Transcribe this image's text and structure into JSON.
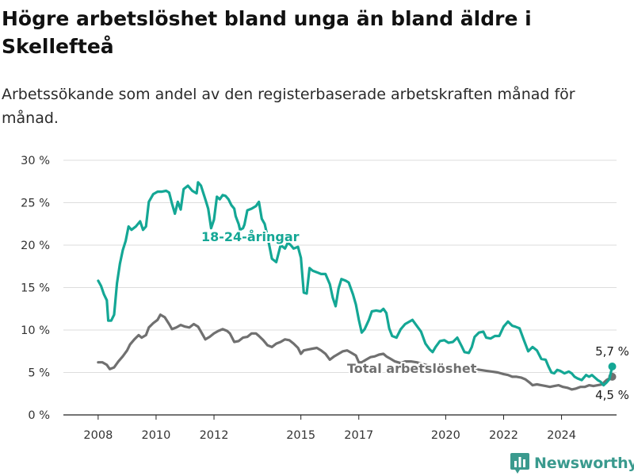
{
  "title": "Högre arbetslöshet bland unga än bland äldre i Skellefteå",
  "subtitle": "Arbetssökande som andel av den registerbaserade arbetskraften månad för månad.",
  "brand": {
    "name": "Newsworthy",
    "icon": "bar-chart-logo-icon"
  },
  "colors": {
    "young": "#14a795",
    "total": "#707070",
    "grid": "#dddddd",
    "brand": "#3a9a8e"
  },
  "chart_data": {
    "type": "line",
    "title": "Högre arbetslöshet bland unga än bland äldre i Skellefteå",
    "subtitle": "Arbetssökande som andel av den registerbaserade arbetskraften månad för månad.",
    "xlabel": "",
    "ylabel": "",
    "xlim": [
      2006.8,
      2025.9
    ],
    "ylim": [
      0,
      30
    ],
    "grid": "horizontal",
    "legend": "inline labels",
    "y_ticks": [
      {
        "value": 0,
        "label": "0 %"
      },
      {
        "value": 5,
        "label": "5 %"
      },
      {
        "value": 10,
        "label": "10 %"
      },
      {
        "value": 15,
        "label": "15 %"
      },
      {
        "value": 20,
        "label": "20 %"
      },
      {
        "value": 25,
        "label": "25 %"
      },
      {
        "value": 30,
        "label": "30 %"
      }
    ],
    "x_ticks": [
      {
        "value": 2008,
        "label": "2008"
      },
      {
        "value": 2010,
        "label": "2010"
      },
      {
        "value": 2012,
        "label": "2012"
      },
      {
        "value": 2015,
        "label": "2015"
      },
      {
        "value": 2017,
        "label": "2017"
      },
      {
        "value": 2020,
        "label": "2020"
      },
      {
        "value": 2022,
        "label": "2022"
      },
      {
        "value": 2024,
        "label": "2024"
      }
    ],
    "series": [
      {
        "name": "18-24-åringar",
        "color": "#14a795",
        "end_label": "5,7 %",
        "points": [
          [
            2008.0,
            15.8
          ],
          [
            2008.1,
            15.2
          ],
          [
            2008.2,
            14.2
          ],
          [
            2008.3,
            13.5
          ],
          [
            2008.35,
            11.1
          ],
          [
            2008.45,
            11.1
          ],
          [
            2008.55,
            11.8
          ],
          [
            2008.65,
            15.5
          ],
          [
            2008.75,
            17.8
          ],
          [
            2008.85,
            19.4
          ],
          [
            2008.95,
            20.5
          ],
          [
            2009.05,
            22.2
          ],
          [
            2009.15,
            21.8
          ],
          [
            2009.3,
            22.2
          ],
          [
            2009.45,
            22.8
          ],
          [
            2009.55,
            21.8
          ],
          [
            2009.65,
            22.2
          ],
          [
            2009.75,
            25.1
          ],
          [
            2009.9,
            26.0
          ],
          [
            2010.05,
            26.3
          ],
          [
            2010.2,
            26.3
          ],
          [
            2010.35,
            26.4
          ],
          [
            2010.45,
            26.2
          ],
          [
            2010.55,
            24.9
          ],
          [
            2010.65,
            23.7
          ],
          [
            2010.75,
            25.1
          ],
          [
            2010.85,
            24.2
          ],
          [
            2010.95,
            26.6
          ],
          [
            2011.1,
            27.0
          ],
          [
            2011.25,
            26.4
          ],
          [
            2011.4,
            26.1
          ],
          [
            2011.45,
            27.4
          ],
          [
            2011.55,
            27.0
          ],
          [
            2011.7,
            25.4
          ],
          [
            2011.8,
            24.3
          ],
          [
            2011.9,
            22.0
          ],
          [
            2012.0,
            23.0
          ],
          [
            2012.1,
            25.7
          ],
          [
            2012.2,
            25.4
          ],
          [
            2012.3,
            25.9
          ],
          [
            2012.4,
            25.8
          ],
          [
            2012.5,
            25.4
          ],
          [
            2012.6,
            24.7
          ],
          [
            2012.7,
            24.3
          ],
          [
            2012.75,
            23.4
          ],
          [
            2012.85,
            22.5
          ],
          [
            2012.9,
            21.8
          ],
          [
            2013.0,
            22.0
          ],
          [
            2013.05,
            22.4
          ],
          [
            2013.15,
            24.1
          ],
          [
            2013.3,
            24.3
          ],
          [
            2013.45,
            24.6
          ],
          [
            2013.55,
            25.1
          ],
          [
            2013.65,
            23.1
          ],
          [
            2013.75,
            22.5
          ],
          [
            2013.85,
            21.0
          ],
          [
            2014.0,
            18.4
          ],
          [
            2014.15,
            18.0
          ],
          [
            2014.3,
            20.0
          ],
          [
            2014.45,
            19.6
          ],
          [
            2014.55,
            20.3
          ],
          [
            2014.65,
            20.0
          ],
          [
            2014.75,
            19.6
          ],
          [
            2014.9,
            19.8
          ],
          [
            2015.0,
            18.5
          ],
          [
            2015.1,
            14.4
          ],
          [
            2015.2,
            14.3
          ],
          [
            2015.3,
            17.3
          ],
          [
            2015.4,
            17.0
          ],
          [
            2015.55,
            16.8
          ],
          [
            2015.7,
            16.6
          ],
          [
            2015.85,
            16.6
          ],
          [
            2016.0,
            15.4
          ],
          [
            2016.1,
            13.8
          ],
          [
            2016.2,
            12.8
          ],
          [
            2016.3,
            14.9
          ],
          [
            2016.4,
            16.0
          ],
          [
            2016.55,
            15.8
          ],
          [
            2016.65,
            15.6
          ],
          [
            2016.8,
            14.2
          ],
          [
            2016.9,
            13.0
          ],
          [
            2017.0,
            11.2
          ],
          [
            2017.1,
            9.7
          ],
          [
            2017.2,
            10.1
          ],
          [
            2017.35,
            11.2
          ],
          [
            2017.45,
            12.2
          ],
          [
            2017.6,
            12.3
          ],
          [
            2017.75,
            12.2
          ],
          [
            2017.85,
            12.5
          ],
          [
            2017.95,
            12.0
          ],
          [
            2018.05,
            10.2
          ],
          [
            2018.15,
            9.3
          ],
          [
            2018.3,
            9.1
          ],
          [
            2018.45,
            10.1
          ],
          [
            2018.6,
            10.7
          ],
          [
            2018.7,
            10.9
          ],
          [
            2018.85,
            11.2
          ],
          [
            2019.0,
            10.5
          ],
          [
            2019.15,
            9.8
          ],
          [
            2019.3,
            8.4
          ],
          [
            2019.45,
            7.7
          ],
          [
            2019.55,
            7.4
          ],
          [
            2019.65,
            8.0
          ],
          [
            2019.8,
            8.7
          ],
          [
            2019.95,
            8.8
          ],
          [
            2020.1,
            8.5
          ],
          [
            2020.25,
            8.6
          ],
          [
            2020.4,
            9.1
          ],
          [
            2020.55,
            8.1
          ],
          [
            2020.65,
            7.4
          ],
          [
            2020.8,
            7.3
          ],
          [
            2020.9,
            8.0
          ],
          [
            2021.0,
            9.2
          ],
          [
            2021.15,
            9.7
          ],
          [
            2021.3,
            9.8
          ],
          [
            2021.4,
            9.1
          ],
          [
            2021.55,
            9.0
          ],
          [
            2021.7,
            9.3
          ],
          [
            2021.85,
            9.3
          ],
          [
            2022.0,
            10.4
          ],
          [
            2022.15,
            11.0
          ],
          [
            2022.3,
            10.5
          ],
          [
            2022.4,
            10.4
          ],
          [
            2022.55,
            10.2
          ],
          [
            2022.7,
            8.8
          ],
          [
            2022.85,
            7.5
          ],
          [
            2023.0,
            8.0
          ],
          [
            2023.15,
            7.6
          ],
          [
            2023.3,
            6.6
          ],
          [
            2023.45,
            6.5
          ],
          [
            2023.55,
            5.7
          ],
          [
            2023.65,
            5.0
          ],
          [
            2023.75,
            4.9
          ],
          [
            2023.85,
            5.3
          ],
          [
            2023.95,
            5.2
          ],
          [
            2024.1,
            4.9
          ],
          [
            2024.25,
            5.1
          ],
          [
            2024.35,
            4.9
          ],
          [
            2024.45,
            4.5
          ],
          [
            2024.55,
            4.3
          ],
          [
            2024.7,
            4.1
          ],
          [
            2024.85,
            4.7
          ],
          [
            2024.95,
            4.5
          ],
          [
            2025.05,
            4.7
          ],
          [
            2025.15,
            4.4
          ],
          [
            2025.25,
            4.1
          ],
          [
            2025.35,
            3.9
          ],
          [
            2025.45,
            3.5
          ],
          [
            2025.55,
            3.8
          ],
          [
            2025.65,
            4.2
          ],
          [
            2025.75,
            5.7
          ]
        ]
      },
      {
        "name": "Total arbetslöshet",
        "color": "#707070",
        "end_label": "4,5 %",
        "points": [
          [
            2008.0,
            6.2
          ],
          [
            2008.15,
            6.2
          ],
          [
            2008.3,
            5.9
          ],
          [
            2008.4,
            5.4
          ],
          [
            2008.55,
            5.6
          ],
          [
            2008.7,
            6.3
          ],
          [
            2008.85,
            6.9
          ],
          [
            2009.0,
            7.6
          ],
          [
            2009.1,
            8.3
          ],
          [
            2009.25,
            8.9
          ],
          [
            2009.4,
            9.4
          ],
          [
            2009.5,
            9.1
          ],
          [
            2009.65,
            9.4
          ],
          [
            2009.75,
            10.3
          ],
          [
            2009.9,
            10.8
          ],
          [
            2010.05,
            11.2
          ],
          [
            2010.15,
            11.8
          ],
          [
            2010.3,
            11.5
          ],
          [
            2010.45,
            10.7
          ],
          [
            2010.55,
            10.1
          ],
          [
            2010.7,
            10.3
          ],
          [
            2010.85,
            10.6
          ],
          [
            2011.0,
            10.4
          ],
          [
            2011.15,
            10.3
          ],
          [
            2011.3,
            10.7
          ],
          [
            2011.45,
            10.4
          ],
          [
            2011.55,
            9.8
          ],
          [
            2011.7,
            8.9
          ],
          [
            2011.85,
            9.2
          ],
          [
            2012.0,
            9.6
          ],
          [
            2012.15,
            9.9
          ],
          [
            2012.3,
            10.1
          ],
          [
            2012.45,
            9.9
          ],
          [
            2012.55,
            9.6
          ],
          [
            2012.7,
            8.6
          ],
          [
            2012.85,
            8.7
          ],
          [
            2013.0,
            9.1
          ],
          [
            2013.15,
            9.2
          ],
          [
            2013.3,
            9.6
          ],
          [
            2013.45,
            9.6
          ],
          [
            2013.55,
            9.3
          ],
          [
            2013.7,
            8.8
          ],
          [
            2013.85,
            8.2
          ],
          [
            2014.0,
            8.0
          ],
          [
            2014.15,
            8.4
          ],
          [
            2014.3,
            8.6
          ],
          [
            2014.45,
            8.9
          ],
          [
            2014.6,
            8.8
          ],
          [
            2014.75,
            8.4
          ],
          [
            2014.9,
            7.9
          ],
          [
            2015.0,
            7.2
          ],
          [
            2015.1,
            7.6
          ],
          [
            2015.25,
            7.7
          ],
          [
            2015.4,
            7.8
          ],
          [
            2015.55,
            7.9
          ],
          [
            2015.7,
            7.6
          ],
          [
            2015.85,
            7.2
          ],
          [
            2016.0,
            6.5
          ],
          [
            2016.15,
            6.9
          ],
          [
            2016.3,
            7.2
          ],
          [
            2016.45,
            7.5
          ],
          [
            2016.6,
            7.6
          ],
          [
            2016.75,
            7.3
          ],
          [
            2016.9,
            7.0
          ],
          [
            2017.0,
            6.2
          ],
          [
            2017.1,
            6.2
          ],
          [
            2017.25,
            6.5
          ],
          [
            2017.4,
            6.8
          ],
          [
            2017.55,
            6.9
          ],
          [
            2017.7,
            7.1
          ],
          [
            2017.85,
            7.2
          ],
          [
            2017.95,
            6.9
          ],
          [
            2018.1,
            6.6
          ],
          [
            2018.25,
            6.3
          ],
          [
            2018.45,
            6.1
          ],
          [
            2018.6,
            6.3
          ],
          [
            2018.8,
            6.3
          ],
          [
            2019.0,
            6.2
          ],
          [
            2019.2,
            6.0
          ],
          [
            2019.4,
            5.8
          ],
          [
            2019.6,
            5.6
          ],
          [
            2019.8,
            5.5
          ],
          [
            2020.0,
            5.6
          ],
          [
            2020.2,
            5.4
          ],
          [
            2020.4,
            5.6
          ],
          [
            2020.6,
            5.5
          ],
          [
            2020.8,
            5.3
          ],
          [
            2021.0,
            5.4
          ],
          [
            2021.2,
            5.3
          ],
          [
            2021.4,
            5.2
          ],
          [
            2021.6,
            5.1
          ],
          [
            2021.8,
            5.0
          ],
          [
            2022.0,
            4.8
          ],
          [
            2022.15,
            4.7
          ],
          [
            2022.3,
            4.5
          ],
          [
            2022.45,
            4.5
          ],
          [
            2022.6,
            4.4
          ],
          [
            2022.75,
            4.2
          ],
          [
            2022.9,
            3.8
          ],
          [
            2023.0,
            3.5
          ],
          [
            2023.15,
            3.6
          ],
          [
            2023.3,
            3.5
          ],
          [
            2023.45,
            3.4
          ],
          [
            2023.6,
            3.3
          ],
          [
            2023.75,
            3.4
          ],
          [
            2023.9,
            3.5
          ],
          [
            2024.05,
            3.3
          ],
          [
            2024.2,
            3.2
          ],
          [
            2024.35,
            3.0
          ],
          [
            2024.5,
            3.1
          ],
          [
            2024.65,
            3.3
          ],
          [
            2024.8,
            3.3
          ],
          [
            2024.95,
            3.5
          ],
          [
            2025.1,
            3.4
          ],
          [
            2025.25,
            3.5
          ],
          [
            2025.4,
            3.6
          ],
          [
            2025.55,
            4.1
          ],
          [
            2025.75,
            4.5
          ]
        ]
      }
    ]
  }
}
